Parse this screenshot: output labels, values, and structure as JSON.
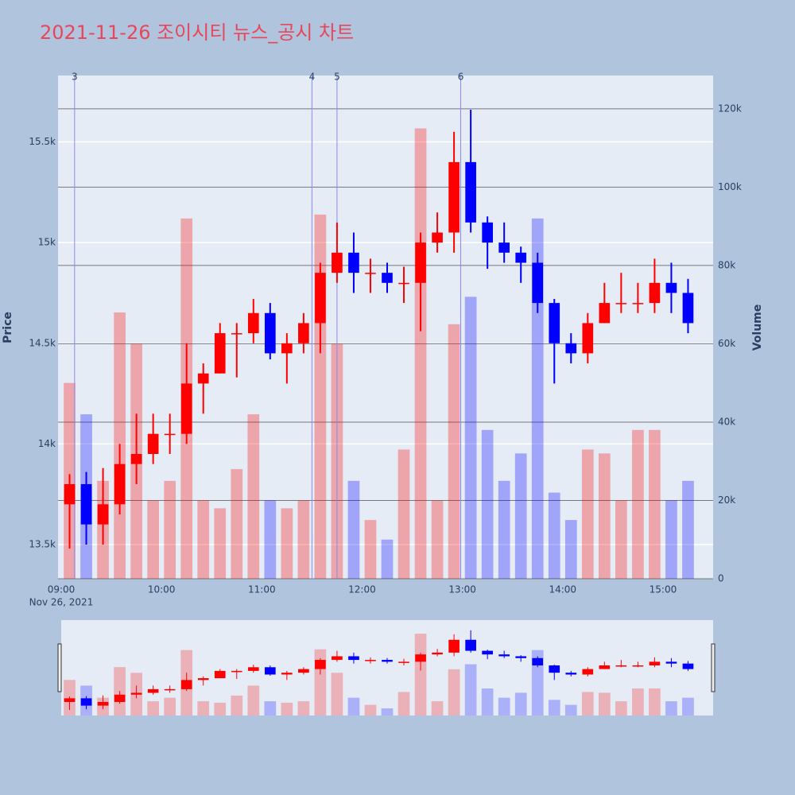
{
  "chart_data": {
    "type": "candlestick",
    "title": "2021-11-26 조이시티 뉴스_공시 차트",
    "y_title": "Price",
    "y2_title": "Volume",
    "x_date_label": "Nov 26, 2021",
    "increasing_color": "#ff0000",
    "decreasing_color": "#0000ff",
    "x": [
      "09:00",
      "09:10",
      "09:20",
      "09:30",
      "09:40",
      "09:50",
      "10:00",
      "10:10",
      "10:20",
      "10:30",
      "10:40",
      "10:50",
      "11:00",
      "11:10",
      "11:20",
      "11:30",
      "11:40",
      "11:50",
      "12:00",
      "12:10",
      "12:20",
      "12:30",
      "12:40",
      "12:50",
      "13:00",
      "13:10",
      "13:20",
      "13:30",
      "13:40",
      "13:50",
      "14:00",
      "14:10",
      "14:20",
      "14:30",
      "14:40",
      "14:50",
      "15:00",
      "15:10"
    ],
    "open": [
      13700,
      13800,
      13600,
      13700,
      13900,
      13950,
      14050,
      14050,
      14300,
      14350,
      14550,
      14550,
      14650,
      14450,
      14500,
      14600,
      14850,
      14950,
      14850,
      14850,
      14800,
      14800,
      15000,
      15050,
      15400,
      15100,
      15000,
      14950,
      14900,
      14700,
      14500,
      14450,
      14600,
      14700,
      14700,
      14700,
      14800,
      14750
    ],
    "high": [
      13850,
      13860,
      13880,
      14000,
      14150,
      14150,
      14150,
      14500,
      14400,
      14600,
      14600,
      14720,
      14700,
      14550,
      14650,
      14900,
      15100,
      15050,
      14920,
      14900,
      14880,
      15050,
      15150,
      15550,
      15660,
      15130,
      15100,
      14980,
      14950,
      14720,
      14550,
      14650,
      14800,
      14850,
      14800,
      14920,
      14900,
      14820
    ],
    "low": [
      13480,
      13500,
      13500,
      13650,
      13800,
      13900,
      13950,
      14000,
      14150,
      14350,
      14330,
      14500,
      14420,
      14300,
      14450,
      14450,
      14800,
      14750,
      14750,
      14750,
      14700,
      14560,
      14950,
      14950,
      15050,
      14870,
      14900,
      14800,
      14650,
      14300,
      14400,
      14400,
      14600,
      14650,
      14650,
      14650,
      14650,
      14550
    ],
    "close": [
      13800,
      13600,
      13700,
      13900,
      13950,
      14050,
      14050,
      14300,
      14350,
      14550,
      14550,
      14650,
      14450,
      14500,
      14600,
      14850,
      14950,
      14850,
      14850,
      14800,
      14800,
      15000,
      15050,
      15400,
      15100,
      15000,
      14950,
      14900,
      14700,
      14500,
      14450,
      14600,
      14700,
      14700,
      14700,
      14800,
      14750,
      14600
    ],
    "volume": [
      50000,
      42000,
      25000,
      68000,
      60000,
      20000,
      25000,
      92000,
      20000,
      18000,
      28000,
      42000,
      20000,
      18000,
      20000,
      93000,
      60000,
      25000,
      15000,
      10000,
      33000,
      115000,
      20000,
      65000,
      72000,
      38000,
      25000,
      32000,
      92000,
      22000,
      15000,
      33000,
      32000,
      20000,
      38000,
      38000,
      20000,
      25000
    ],
    "xlim": [
      "09:00",
      "15:30"
    ],
    "xticks": [
      "09:00",
      "10:00",
      "11:00",
      "12:00",
      "13:00",
      "14:00",
      "15:00"
    ],
    "ylim": [
      13330,
      15830
    ],
    "yticks": [
      {
        "value": 13500,
        "label": "13.5k"
      },
      {
        "value": 14000,
        "label": "14k"
      },
      {
        "value": 14500,
        "label": "14.5k"
      },
      {
        "value": 15000,
        "label": "15k"
      },
      {
        "value": 15500,
        "label": "15.5k"
      }
    ],
    "y2lim": [
      0,
      128500
    ],
    "y2ticks": [
      0,
      {
        "value": 20000,
        "label": "20k"
      },
      {
        "value": 40000,
        "label": "40k"
      },
      {
        "value": 60000,
        "label": "60k"
      },
      {
        "value": 80000,
        "label": "80k"
      },
      {
        "value": 100000,
        "label": "100k"
      },
      {
        "value": 120000,
        "label": "120k"
      }
    ],
    "annotations": [
      {
        "x": "09:08",
        "label": "3"
      },
      {
        "x": "11:30",
        "label": "4"
      },
      {
        "x": "11:45",
        "label": "5"
      },
      {
        "x": "12:59",
        "label": "6"
      }
    ]
  }
}
